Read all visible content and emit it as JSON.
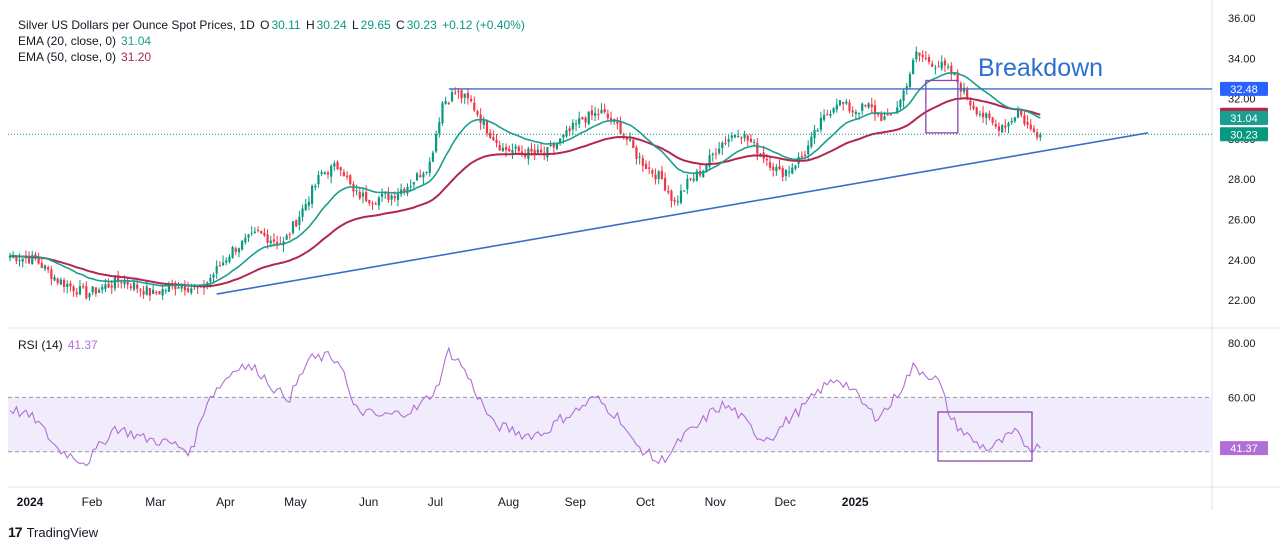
{
  "header": {
    "title": "Silver US Dollars per Ounce Spot Prices, 1D",
    "o_label": "O",
    "o": "30.11",
    "h_label": "H",
    "h": "30.24",
    "l_label": "L",
    "l": "29.65",
    "c_label": "C",
    "c": "30.23",
    "change": "+0.12 (+0.40%)",
    "ema20_label": "EMA (20, close, 0)",
    "ema20_value": "31.04",
    "ema50_label": "EMA (50, close, 0)",
    "ema50_value": "31.20",
    "rsi_label": "RSI (14)",
    "rsi_value": "41.37"
  },
  "brand": {
    "logo": "17",
    "name": "TradingView"
  },
  "colors": {
    "up": "#089981",
    "down": "#f23645",
    "ema20": "#1a9e8f",
    "ema50": "#b2284c",
    "trend": "#3a6fc4",
    "rsi": "#b06fd6",
    "rsi_band": "#f1ecfb",
    "box": "#8e44ad",
    "annotation": "#2d6fd0"
  },
  "chart_data": [
    {
      "type": "candlestick",
      "title": "Silver US Dollars per Ounce Spot Prices, 1D",
      "x_labels": [
        "2024",
        "Feb",
        "Mar",
        "Apr",
        "May",
        "Jun",
        "Jul",
        "Aug",
        "Sep",
        "Oct",
        "Nov",
        "Dec",
        "2025"
      ],
      "y_ticks": [
        "22.00",
        "24.00",
        "26.00",
        "28.00",
        "30.00",
        "32.00",
        "34.00",
        "36.00"
      ],
      "ylim": [
        21.0,
        36.0
      ],
      "price_tags": [
        {
          "value": 32.48,
          "label": "32.48",
          "color": "#2962ff"
        },
        {
          "value": 31.2,
          "label": "31.20",
          "color": "#b2284c"
        },
        {
          "value": 31.04,
          "label": "31.04",
          "color": "#1a9e8f"
        },
        {
          "value": 30.23,
          "label": "30.23",
          "color": "#089981"
        }
      ],
      "annotation": "Breakdown",
      "close_keypoints": [
        [
          0,
          24.2
        ],
        [
          8,
          24.0
        ],
        [
          15,
          23.0
        ],
        [
          24,
          22.3
        ],
        [
          35,
          23.0
        ],
        [
          45,
          22.3
        ],
        [
          53,
          22.8
        ],
        [
          60,
          22.5
        ],
        [
          64,
          23.3
        ],
        [
          70,
          24.5
        ],
        [
          78,
          25.3
        ],
        [
          86,
          24.8
        ],
        [
          92,
          26.5
        ],
        [
          98,
          28.3
        ],
        [
          104,
          28.7
        ],
        [
          108,
          27.3
        ],
        [
          114,
          27.0
        ],
        [
          120,
          27.2
        ],
        [
          126,
          27.8
        ],
        [
          132,
          28.8
        ],
        [
          136,
          31.8
        ],
        [
          140,
          32.3
        ],
        [
          145,
          31.8
        ],
        [
          150,
          30.5
        ],
        [
          155,
          29.5
        ],
        [
          163,
          29.3
        ],
        [
          168,
          29.2
        ],
        [
          175,
          30.2
        ],
        [
          180,
          31.0
        ],
        [
          186,
          31.3
        ],
        [
          192,
          30.5
        ],
        [
          197,
          29.2
        ],
        [
          201,
          28.5
        ],
        [
          205,
          28.0
        ],
        [
          209,
          26.8
        ],
        [
          213,
          27.8
        ],
        [
          218,
          28.5
        ],
        [
          223,
          29.7
        ],
        [
          229,
          30.4
        ],
        [
          233,
          29.8
        ],
        [
          238,
          29.0
        ],
        [
          242,
          28.3
        ],
        [
          245,
          28.5
        ],
        [
          250,
          29.3
        ],
        [
          255,
          30.8
        ],
        [
          260,
          31.9
        ],
        [
          265,
          31.4
        ],
        [
          270,
          31.6
        ],
        [
          273,
          31.2
        ],
        [
          276,
          30.9
        ],
        [
          280,
          31.9
        ],
        [
          285,
          34.2
        ],
        [
          290,
          33.8
        ],
        [
          294,
          33.5
        ],
        [
          297,
          33.1
        ],
        [
          302,
          31.8
        ],
        [
          307,
          31.0
        ],
        [
          310,
          30.6
        ],
        [
          314,
          30.8
        ],
        [
          317,
          31.4
        ],
        [
          321,
          30.4
        ],
        [
          324,
          30.23
        ]
      ],
      "ema20_value": 31.04,
      "ema50_value": 31.2
    },
    {
      "type": "line",
      "title": "RSI (14)",
      "y_ticks": [
        "60.00",
        "80.00"
      ],
      "ylim": [
        15,
        85
      ],
      "band": [
        40,
        60
      ],
      "last": 41.37,
      "keypoints": [
        [
          0,
          56
        ],
        [
          8,
          52
        ],
        [
          15,
          41
        ],
        [
          24,
          36
        ],
        [
          33,
          49
        ],
        [
          42,
          45
        ],
        [
          51,
          43
        ],
        [
          57,
          40
        ],
        [
          62,
          59
        ],
        [
          68,
          67
        ],
        [
          72,
          72
        ],
        [
          78,
          70
        ],
        [
          84,
          62
        ],
        [
          88,
          60
        ],
        [
          94,
          74
        ],
        [
          100,
          75
        ],
        [
          104,
          73
        ],
        [
          108,
          56
        ],
        [
          116,
          53
        ],
        [
          122,
          54
        ],
        [
          128,
          56
        ],
        [
          134,
          63
        ],
        [
          138,
          77
        ],
        [
          142,
          72
        ],
        [
          146,
          63
        ],
        [
          152,
          50
        ],
        [
          158,
          48
        ],
        [
          162,
          46
        ],
        [
          168,
          47
        ],
        [
          173,
          52
        ],
        [
          178,
          55
        ],
        [
          184,
          60
        ],
        [
          188,
          56
        ],
        [
          192,
          52
        ],
        [
          196,
          43
        ],
        [
          200,
          40
        ],
        [
          204,
          36
        ],
        [
          208,
          40
        ],
        [
          212,
          46
        ],
        [
          216,
          49
        ],
        [
          220,
          54
        ],
        [
          224,
          57
        ],
        [
          228,
          55
        ],
        [
          232,
          50
        ],
        [
          236,
          45
        ],
        [
          240,
          46
        ],
        [
          244,
          51
        ],
        [
          250,
          57
        ],
        [
          255,
          63
        ],
        [
          260,
          67
        ],
        [
          264,
          64
        ],
        [
          268,
          58
        ],
        [
          272,
          53
        ],
        [
          276,
          56
        ],
        [
          280,
          63
        ],
        [
          284,
          71
        ],
        [
          288,
          69
        ],
        [
          292,
          66
        ],
        [
          296,
          52
        ],
        [
          300,
          47
        ],
        [
          304,
          43
        ],
        [
          308,
          41
        ],
        [
          312,
          44
        ],
        [
          316,
          47
        ],
        [
          320,
          42
        ],
        [
          324,
          41.37
        ]
      ]
    }
  ]
}
